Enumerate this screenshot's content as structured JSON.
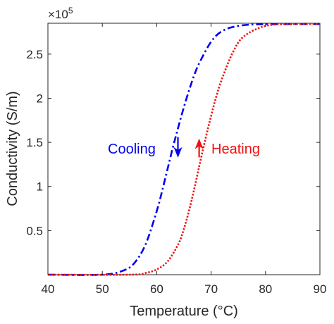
{
  "chart_data": {
    "type": "line",
    "xlabel": "Temperature (°C)",
    "ylabel": "Conductivity (S/m)",
    "exponent_base": "×10",
    "exponent_power": "5",
    "xlim": [
      40,
      90
    ],
    "ylim": [
      0,
      2.85
    ],
    "xticks": [
      40,
      50,
      60,
      70,
      80,
      90
    ],
    "yticks": [
      0.5,
      1,
      1.5,
      2,
      2.5
    ],
    "xtick_labels": [
      "40",
      "50",
      "60",
      "70",
      "80",
      "90"
    ],
    "ytick_labels": [
      "0.5",
      "1",
      "1.5",
      "2",
      "2.5"
    ],
    "grid": false,
    "series": [
      {
        "key": "cooling",
        "color": "#0000ee",
        "style": "dash-dot",
        "x": [
          40,
          50,
          54,
          56,
          58,
          60,
          61,
          62,
          63,
          64,
          65,
          66,
          67,
          68,
          70,
          72,
          75,
          80,
          90
        ],
        "y": [
          0.0,
          0.0,
          0.05,
          0.14,
          0.35,
          0.72,
          0.95,
          1.2,
          1.45,
          1.68,
          1.9,
          2.1,
          2.28,
          2.42,
          2.64,
          2.76,
          2.82,
          2.84,
          2.84
        ]
      },
      {
        "key": "heating",
        "color": "#ee1111",
        "style": "dotted",
        "x": [
          40,
          55,
          58,
          60,
          62,
          64,
          65,
          66,
          67,
          68,
          69,
          70,
          71,
          72,
          74,
          76,
          80,
          85,
          90
        ],
        "y": [
          0.0,
          0.0,
          0.02,
          0.06,
          0.15,
          0.35,
          0.52,
          0.74,
          1.0,
          1.28,
          1.55,
          1.8,
          2.03,
          2.22,
          2.52,
          2.7,
          2.82,
          2.84,
          2.84
        ]
      }
    ],
    "annotations": [
      {
        "key": "cooling",
        "text": "Cooling",
        "color": "#0000ee",
        "arrow": "down",
        "x": 63.9,
        "y_from": 1.56,
        "y_to": 1.35
      },
      {
        "key": "heating",
        "text": "Heating",
        "color": "#ee1111",
        "arrow": "up",
        "x": 67.8,
        "y_from": 1.33,
        "y_to": 1.52
      }
    ]
  }
}
